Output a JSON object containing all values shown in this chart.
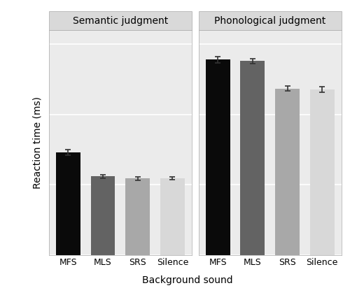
{
  "panels": [
    {
      "title": "Semantic judgment",
      "categories": [
        "MFS",
        "MLS",
        "SRS",
        "Silence"
      ],
      "values": [
        1230,
        1060,
        1045,
        1048
      ],
      "errors": [
        18,
        12,
        12,
        10
      ],
      "bar_colors": [
        "#0a0a0a",
        "#636363",
        "#a8a8a8",
        "#d8d8d8"
      ]
    },
    {
      "title": "Phonological judgment",
      "categories": [
        "MFS",
        "MLS",
        "SRS",
        "Silence"
      ],
      "values": [
        1890,
        1880,
        1685,
        1680
      ],
      "errors": [
        22,
        18,
        18,
        20
      ],
      "bar_colors": [
        "#0a0a0a",
        "#636363",
        "#a8a8a8",
        "#d8d8d8"
      ]
    }
  ],
  "ylabel": "Reaction time (ms)",
  "xlabel": "Background sound",
  "ylim": [
    500,
    2100
  ],
  "yticks": [
    500,
    1000,
    1500,
    2000
  ],
  "panel_bg": "#ebebeb",
  "strip_bg": "#d9d9d9",
  "grid_color": "#ffffff",
  "fig_bg": "#ffffff",
  "bar_width": 0.7,
  "figsize": [
    5.0,
    4.12
  ],
  "dpi": 100,
  "tick_fontsize": 9,
  "label_fontsize": 10,
  "strip_fontsize": 10
}
